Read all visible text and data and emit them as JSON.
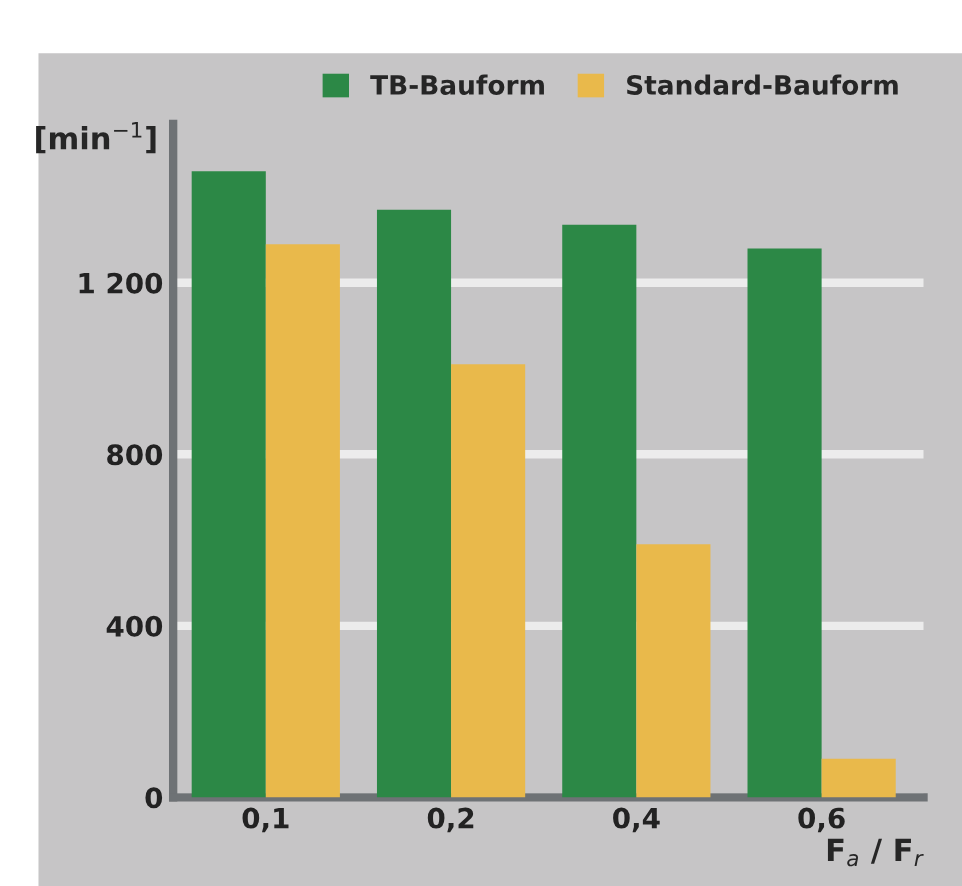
{
  "chart_data": {
    "type": "bar",
    "ylabel": "[min$^{−1}$]",
    "xlabel": "F$_{a}$ / F$_{r}$",
    "categories": [
      "0,1",
      "0,2",
      "0,4",
      "0,6"
    ],
    "series": [
      {
        "name": "TB-Bauform",
        "color": "#2c8846",
        "values": [
          1460,
          1370,
          1335,
          1280
        ]
      },
      {
        "name": "Standard-Bauform",
        "color": "#e9b94b",
        "values": [
          1290,
          1010,
          590,
          90
        ]
      }
    ],
    "ylim": [
      0,
      1570
    ],
    "yticks": [
      0,
      400,
      800,
      {
        "value": 1200,
        "label": "1 200"
      }
    ],
    "grid": "y",
    "legend": "top right"
  }
}
